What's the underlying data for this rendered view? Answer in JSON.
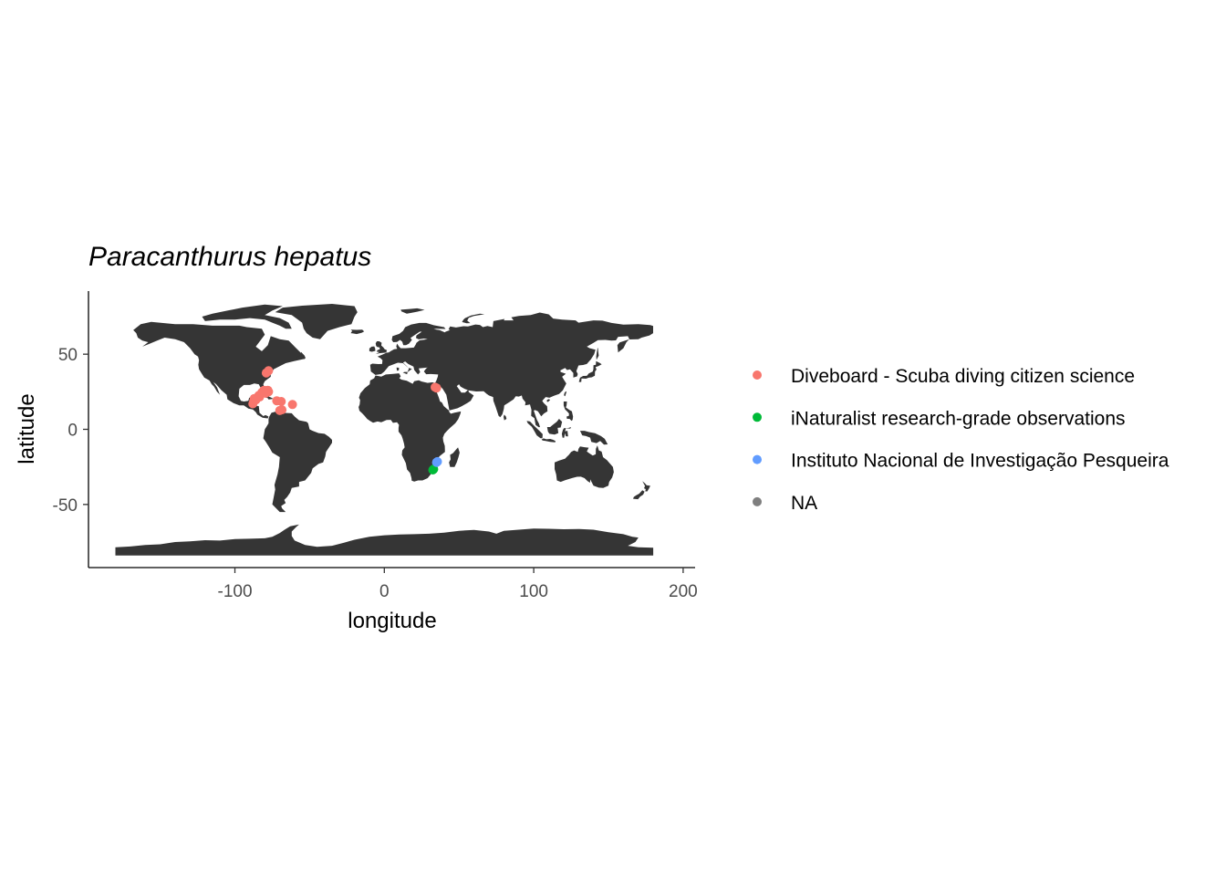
{
  "chart_data": {
    "type": "scatter",
    "title": "Paracanthurus hepatus",
    "xlabel": "longitude",
    "ylabel": "latitude",
    "xlim": [
      -198,
      208
    ],
    "ylim": [
      -92,
      92
    ],
    "x_ticks": [
      {
        "value": -100,
        "label": "-100"
      },
      {
        "value": 0,
        "label": "0"
      },
      {
        "value": 100,
        "label": "100"
      },
      {
        "value": 200,
        "label": "200"
      }
    ],
    "y_ticks": [
      {
        "value": 50,
        "label": "50"
      },
      {
        "value": 0,
        "label": "0"
      },
      {
        "value": -50,
        "label": "-50"
      }
    ],
    "grid": false,
    "basemap": "world land polygons (dark grey)",
    "legend_position": "right",
    "series": [
      {
        "name": "Diveboard - Scuba diving citizen science",
        "color": "#F8766D",
        "points": [
          [
            -77.5,
            39.0
          ],
          [
            -79.0,
            37.5
          ],
          [
            -81.0,
            25.5
          ],
          [
            -80.5,
            26.0
          ],
          [
            -82.0,
            24.5
          ],
          [
            -84.0,
            22.5
          ],
          [
            -85.0,
            21.0
          ],
          [
            -87.0,
            20.5
          ],
          [
            -87.5,
            18.5
          ],
          [
            -88.0,
            17.0
          ],
          [
            -86.0,
            19.5
          ],
          [
            -83.5,
            21.5
          ],
          [
            -79.5,
            24.0
          ],
          [
            -77.5,
            25.0
          ],
          [
            -72.0,
            19.0
          ],
          [
            -69.0,
            18.5
          ],
          [
            -70.0,
            12.5
          ],
          [
            -61.5,
            16.5
          ],
          [
            -68.5,
            13.0
          ],
          [
            -78.0,
            26.0
          ],
          [
            34.0,
            28.0
          ],
          [
            35.0,
            27.5
          ]
        ]
      },
      {
        "name": "iNaturalist research-grade observations",
        "color": "#00BA38",
        "points": [
          [
            33.0,
            -26.5
          ],
          [
            32.5,
            -27.0
          ]
        ]
      },
      {
        "name": "Instituto Nacional de Investigação Pesqueira",
        "color": "#619CFF",
        "points": [
          [
            35.5,
            -21.5
          ],
          [
            35.0,
            -22.0
          ]
        ]
      },
      {
        "name": "NA",
        "color": "#7F7F7F",
        "points": []
      }
    ]
  }
}
